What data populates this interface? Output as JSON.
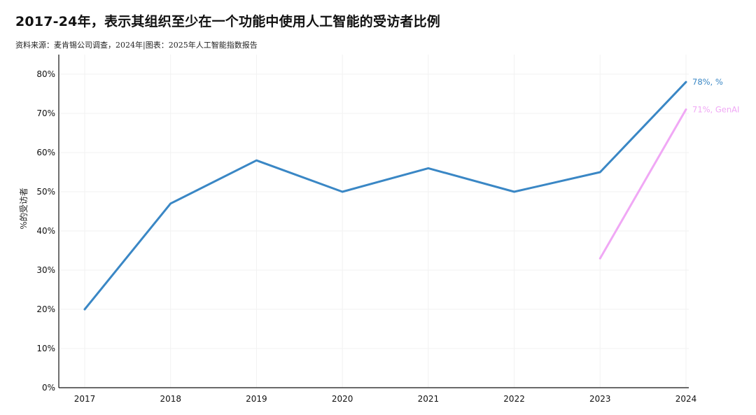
{
  "title": "2017-24年，表示其组织至少在一个功能中使用人工智能的受访者比例",
  "source": "资料来源：麦肯锡公司调查，2024年|图表：2025年人工智能指数报告",
  "chart_data": {
    "type": "line",
    "x": [
      "2017",
      "2018",
      "2019",
      "2020",
      "2021",
      "2022",
      "2023",
      "2024"
    ],
    "ylabel": "%的受访者",
    "ylim": [
      0,
      85
    ],
    "y_ticks": [
      "0%",
      "10%",
      "20%",
      "30%",
      "40%",
      "50%",
      "60%",
      "70%",
      "80%"
    ],
    "grid": true,
    "series": [
      {
        "name": "%",
        "color": "#3a87c5",
        "values": [
          20,
          47,
          58,
          50,
          56,
          50,
          55,
          78
        ],
        "end_label": "78%, %"
      },
      {
        "name": "GenAI",
        "color": "#f0a8f5",
        "values": [
          null,
          null,
          null,
          null,
          null,
          null,
          33,
          71
        ],
        "end_label": "71%, GenAI"
      }
    ]
  }
}
